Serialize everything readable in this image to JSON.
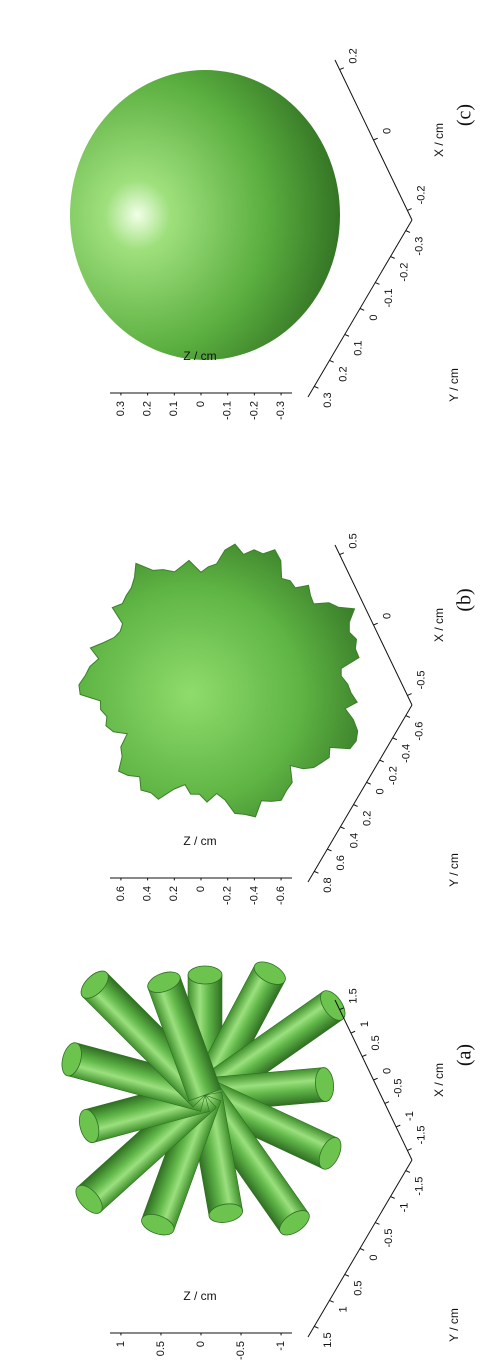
{
  "panels": [
    {
      "caption": "(a)",
      "z_label": "Z / cm",
      "y_label": "Y / cm",
      "x_label": "X / cm",
      "z_ticks": [
        1,
        0.5,
        0,
        -0.5,
        -1
      ],
      "y_ticks": [
        1.5,
        1,
        0.5,
        0,
        -0.5,
        -1,
        -1.5
      ],
      "x_ticks": [
        -1.5,
        -1,
        -0.5,
        0,
        0.5,
        1,
        1.5
      ]
    },
    {
      "caption": "(b)",
      "z_label": "Z / cm",
      "y_label": "Y / cm",
      "x_label": "X / cm",
      "z_ticks": [
        0.6,
        0.4,
        0.2,
        0,
        -0.2,
        -0.4,
        -0.6
      ],
      "y_ticks": [
        0.8,
        0.6,
        0.4,
        0.2,
        0,
        -0.2,
        -0.4,
        -0.6
      ],
      "x_ticks": [
        -0.5,
        0,
        0.5
      ]
    },
    {
      "caption": "(c)",
      "z_label": "Z / cm",
      "y_label": "Y / cm",
      "x_label": "X / cm",
      "z_ticks": [
        0.3,
        0.2,
        0.1,
        0,
        -0.1,
        -0.2,
        -0.3
      ],
      "y_ticks": [
        0.3,
        0.2,
        0.1,
        0,
        -0.1,
        -0.2,
        -0.3
      ],
      "x_ticks": [
        -0.2,
        0,
        0.2
      ]
    }
  ]
}
